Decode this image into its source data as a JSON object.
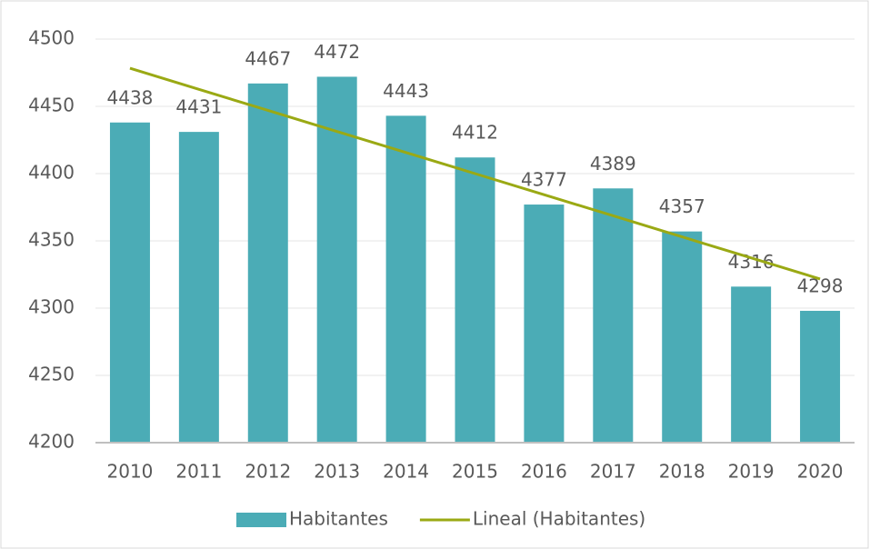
{
  "chart_data": {
    "type": "bar",
    "categories": [
      "2010",
      "2011",
      "2012",
      "2013",
      "2014",
      "2015",
      "2016",
      "2017",
      "2018",
      "2019",
      "2020"
    ],
    "series": [
      {
        "name": "Habitantes",
        "type": "bar",
        "color": "#4bacb6",
        "values": [
          4438,
          4431,
          4467,
          4472,
          4443,
          4412,
          4377,
          4389,
          4357,
          4316,
          4298
        ]
      },
      {
        "name": "Lineal (Habitantes)",
        "type": "line",
        "color": "#9aa914",
        "values": [
          4478.3,
          4462.6,
          4447.0,
          4431.3,
          4415.7,
          4400.0,
          4384.3,
          4368.7,
          4353.0,
          4337.4,
          4321.7
        ]
      }
    ],
    "ylim": [
      4200,
      4500
    ],
    "yticks": [
      4200,
      4250,
      4300,
      4350,
      4400,
      4450,
      4500
    ],
    "grid": true,
    "legend": "bottom"
  }
}
